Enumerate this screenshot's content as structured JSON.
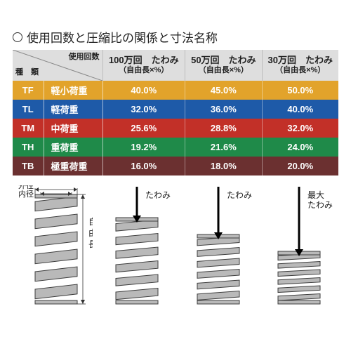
{
  "title": "使用回数と圧縮比の関係と寸法名称",
  "table": {
    "header_left_top": "使用回数",
    "header_left_bottom": "種　類",
    "cols": [
      {
        "top": "100万回　たわみ",
        "sub": "（自由長×%）"
      },
      {
        "top": "50万回　たわみ",
        "sub": "（自由長×%）"
      },
      {
        "top": "30万回　たわみ",
        "sub": "（自由長×%）"
      }
    ],
    "rows": [
      {
        "code": "TF",
        "load": "軽小荷重",
        "v100": "40.0%",
        "v50": "45.0%",
        "v30": "50.0%",
        "color": "#e2a32b"
      },
      {
        "code": "TL",
        "load": "軽荷重",
        "v100": "32.0%",
        "v50": "36.0%",
        "v30": "40.0%",
        "color": "#1e5aa8"
      },
      {
        "code": "TM",
        "load": "中荷重",
        "v100": "25.6%",
        "v50": "28.8%",
        "v30": "32.0%",
        "color": "#c23028"
      },
      {
        "code": "TH",
        "load": "重荷重",
        "v100": "19.2%",
        "v50": "21.6%",
        "v30": "24.0%",
        "color": "#1f8a49"
      },
      {
        "code": "TB",
        "load": "極重荷重",
        "v100": "16.0%",
        "v50": "18.0%",
        "v30": "20.0%",
        "color": "#6b3030"
      }
    ]
  },
  "diagram": {
    "spring_color": "#b9b9b9",
    "spring_stroke": "#3d3d3d",
    "arrow_color": "#000000",
    "label_outer": "外径",
    "label_inner": "内径",
    "label_free_length": "自由長",
    "label_deflection": "たわみ",
    "label_max_deflection": "最大\nたわみ",
    "panels": [
      {
        "coils_height": 150,
        "gap_ratio": 1.0,
        "label": "",
        "show_dims": true,
        "show_arrow": false
      },
      {
        "coils_height": 150,
        "gap_ratio": 0.78,
        "label": "たわみ",
        "show_dims": false,
        "show_arrow": true
      },
      {
        "coils_height": 150,
        "gap_ratio": 0.62,
        "label": "たわみ",
        "show_dims": false,
        "show_arrow": true
      },
      {
        "coils_height": 150,
        "gap_ratio": 0.46,
        "label": "最大\nたわみ",
        "show_dims": false,
        "show_arrow": true
      }
    ]
  }
}
